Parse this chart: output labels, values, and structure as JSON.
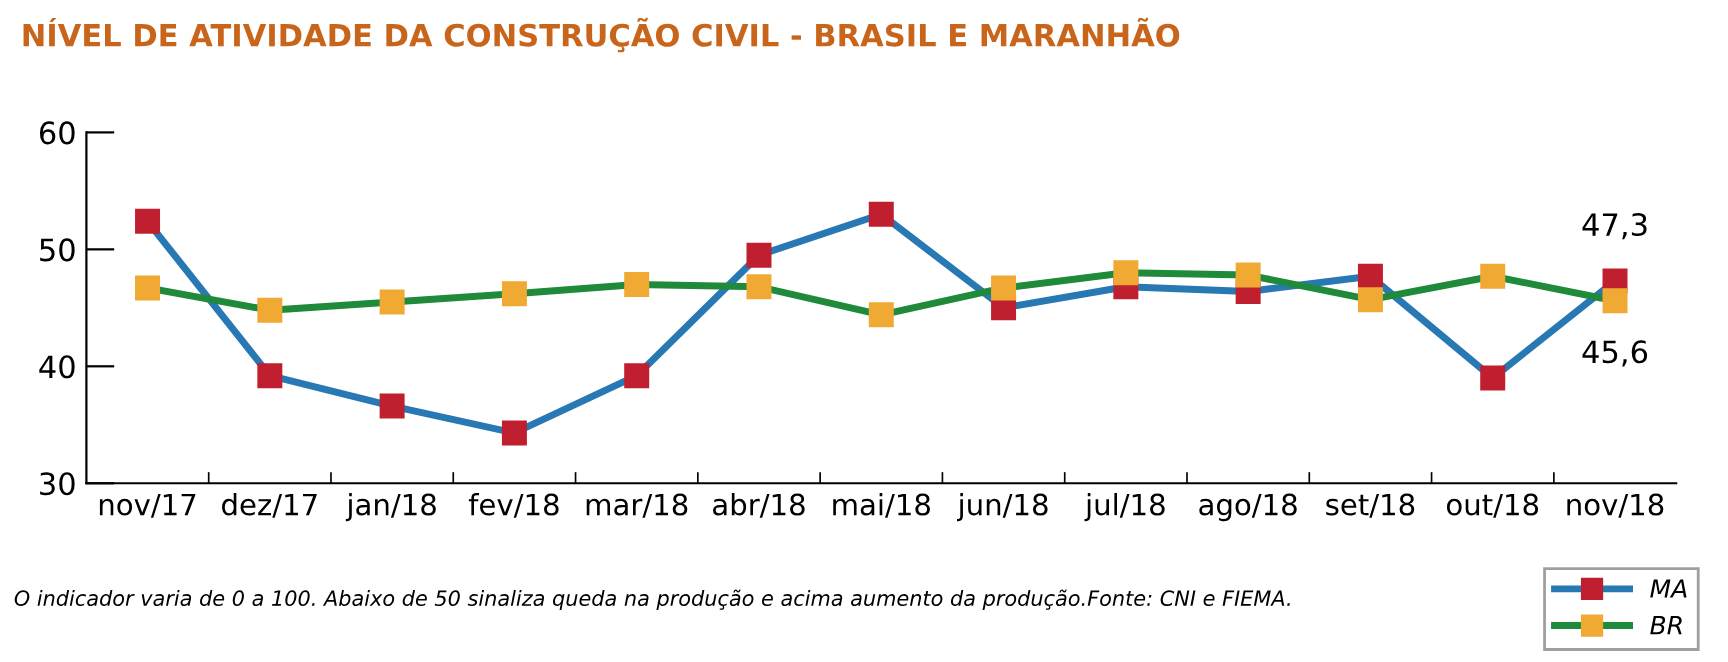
{
  "chart_data": {
    "type": "line",
    "title": "NÍVEL DE ATIVIDADE DA CONSTRUÇÃO CIVIL - BRASIL E MARANHÃO",
    "categories": [
      "nov/17",
      "dez/17",
      "jan/18",
      "fev/18",
      "mar/18",
      "abr/18",
      "mai/18",
      "jun/18",
      "jul/18",
      "ago/18",
      "set/18",
      "out/18",
      "nov/18"
    ],
    "series": [
      {
        "name": "MA",
        "color": "#2878b4",
        "colors": [
          "#c01f2f",
          "#c01f2f",
          "#c01f2f",
          "#c01f2f",
          "#c01f2f",
          "#c01f2f",
          "#c01f2f",
          "#c01f2f",
          "#c01f2f",
          "#c01f2f",
          "#c01f2f",
          "#c01f2f",
          "#c01f2f"
        ],
        "values": [
          52.4,
          39.2,
          36.6,
          34.3,
          39.2,
          49.5,
          53.0,
          45.0,
          46.8,
          46.4,
          47.7,
          39.0,
          47.3
        ],
        "value_labels": [
          null,
          null,
          null,
          null,
          null,
          null,
          null,
          null,
          null,
          null,
          null,
          null,
          "47,3"
        ]
      },
      {
        "name": "BR",
        "color": "#1f8a3a",
        "colors": [
          "#f0aa34",
          "#f0aa34",
          "#f0aa34",
          "#f0aa34",
          "#f0aa34",
          "#f0aa34",
          "#f0aa34",
          "#f0aa34",
          "#f0aa34",
          "#f0aa34",
          "#f0aa34",
          "#f0aa34",
          "#f0aa34"
        ],
        "values": [
          46.7,
          44.8,
          45.5,
          46.2,
          47.0,
          46.8,
          44.4,
          46.7,
          48.0,
          47.8,
          45.7,
          47.7,
          45.6
        ],
        "value_labels": [
          null,
          null,
          null,
          null,
          null,
          null,
          null,
          null,
          null,
          null,
          null,
          null,
          "45,6"
        ]
      }
    ],
    "ylim": [
      30,
      60
    ],
    "yticks": [
      30,
      40,
      50,
      60
    ],
    "grid": false,
    "legend": "bottom right",
    "marker": "square",
    "line_style": "solid",
    "annotations": [
      "O indicador varia de 0 a 100. Abaixo de 50 sinaliza queda na produção e acima aumento da produção.Fonte: CNI e FIEMA."
    ]
  }
}
